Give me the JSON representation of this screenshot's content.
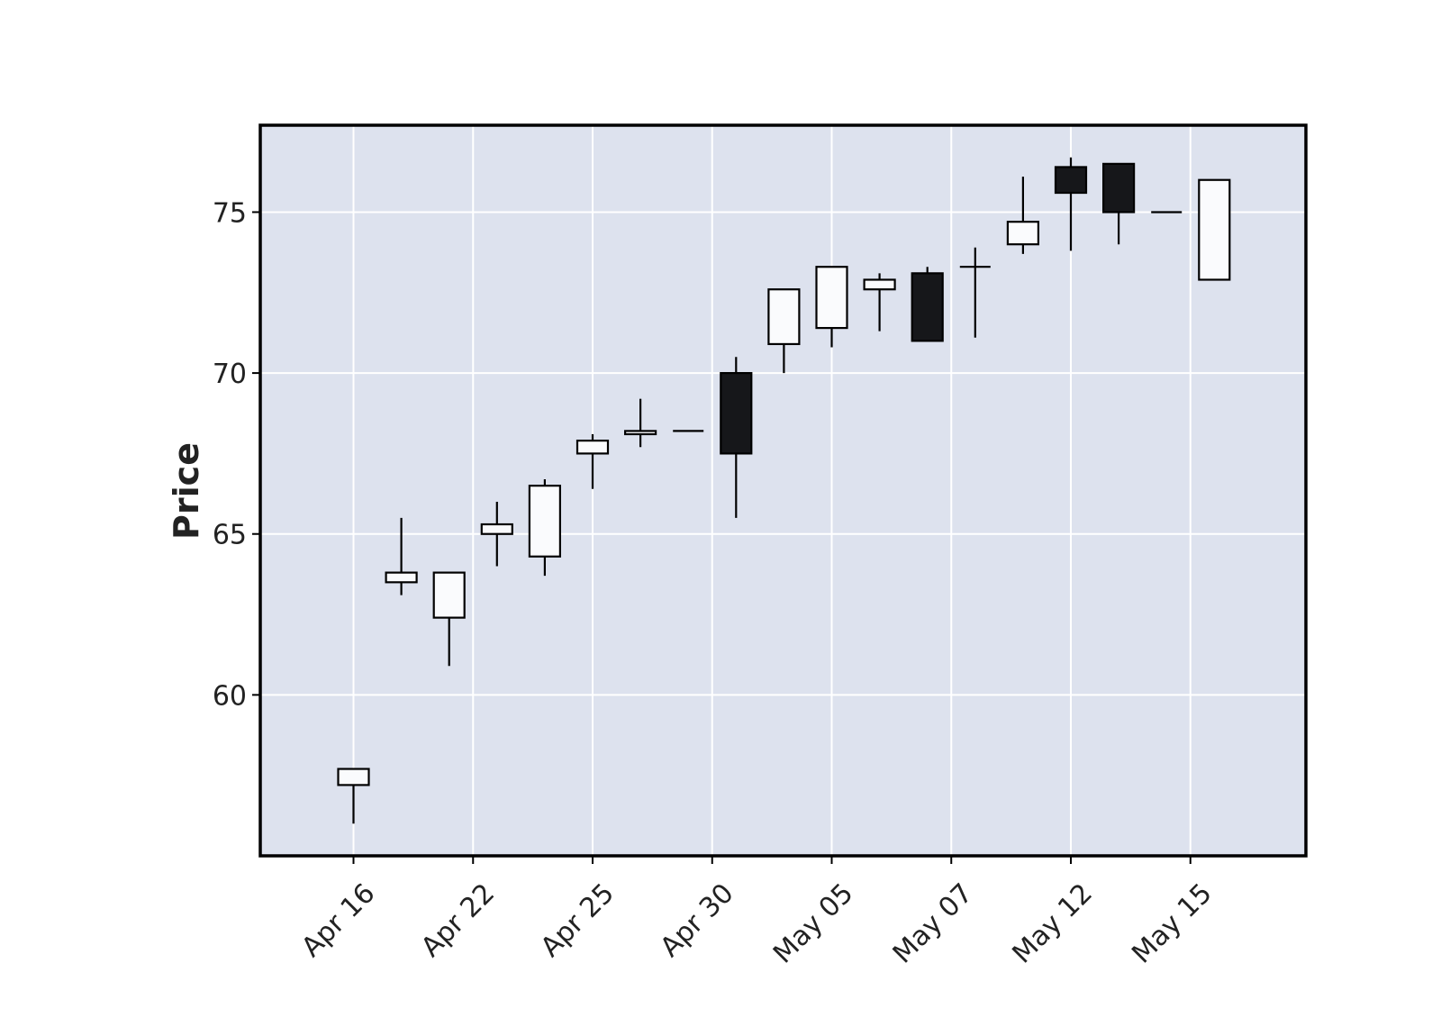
{
  "chart_data": {
    "type": "candlestick",
    "title": "",
    "xlabel": "",
    "ylabel": "Price",
    "ylim": [
      55.0,
      77.7
    ],
    "yticks": [
      60,
      65,
      70,
      75
    ],
    "grid": true,
    "legend": "none",
    "colors": {
      "background": "#dde2ee",
      "grid": "#ffffff",
      "up_fill": "#fafbfd",
      "down_fill": "#16171a",
      "edge": "#000000",
      "frame": "#000000"
    },
    "xtick_labels": [
      {
        "index": 0,
        "label": "Apr 16"
      },
      {
        "index": 2.5,
        "label": "Apr 22"
      },
      {
        "index": 5,
        "label": "Apr 25"
      },
      {
        "index": 7.5,
        "label": "Apr 30"
      },
      {
        "index": 10,
        "label": "May 05"
      },
      {
        "index": 12.5,
        "label": "May 07"
      },
      {
        "index": 15,
        "label": "May 12"
      },
      {
        "index": 17.5,
        "label": "May 15"
      }
    ],
    "candles": [
      {
        "open": 57.2,
        "high": 57.7,
        "low": 56.0,
        "close": 57.7
      },
      {
        "open": 63.5,
        "high": 65.5,
        "low": 63.1,
        "close": 63.8
      },
      {
        "open": 62.4,
        "high": 63.8,
        "low": 60.9,
        "close": 63.8
      },
      {
        "open": 65.0,
        "high": 66.0,
        "low": 64.0,
        "close": 65.3
      },
      {
        "open": 64.3,
        "high": 66.7,
        "low": 63.7,
        "close": 66.5
      },
      {
        "open": 67.5,
        "high": 68.1,
        "low": 66.4,
        "close": 67.9
      },
      {
        "open": 68.1,
        "high": 69.2,
        "low": 67.7,
        "close": 68.2
      },
      {
        "open": 68.2,
        "high": 68.2,
        "low": 68.2,
        "close": 68.2
      },
      {
        "open": 70.0,
        "high": 70.5,
        "low": 65.5,
        "close": 67.5
      },
      {
        "open": 70.9,
        "high": 72.6,
        "low": 70.0,
        "close": 72.6
      },
      {
        "open": 71.4,
        "high": 73.3,
        "low": 70.8,
        "close": 73.3
      },
      {
        "open": 72.6,
        "high": 73.1,
        "low": 71.3,
        "close": 72.9
      },
      {
        "open": 73.1,
        "high": 73.3,
        "low": 71.0,
        "close": 71.0
      },
      {
        "open": 73.3,
        "high": 73.9,
        "low": 71.1,
        "close": 73.3
      },
      {
        "open": 74.0,
        "high": 76.1,
        "low": 73.7,
        "close": 74.7
      },
      {
        "open": 76.4,
        "high": 76.7,
        "low": 73.8,
        "close": 75.6
      },
      {
        "open": 76.5,
        "high": 76.5,
        "low": 74.0,
        "close": 75.0
      },
      {
        "open": 75.0,
        "high": 75.0,
        "low": 75.0,
        "close": 75.0
      },
      {
        "open": 72.9,
        "high": 76.0,
        "low": 72.9,
        "close": 76.0
      }
    ]
  }
}
